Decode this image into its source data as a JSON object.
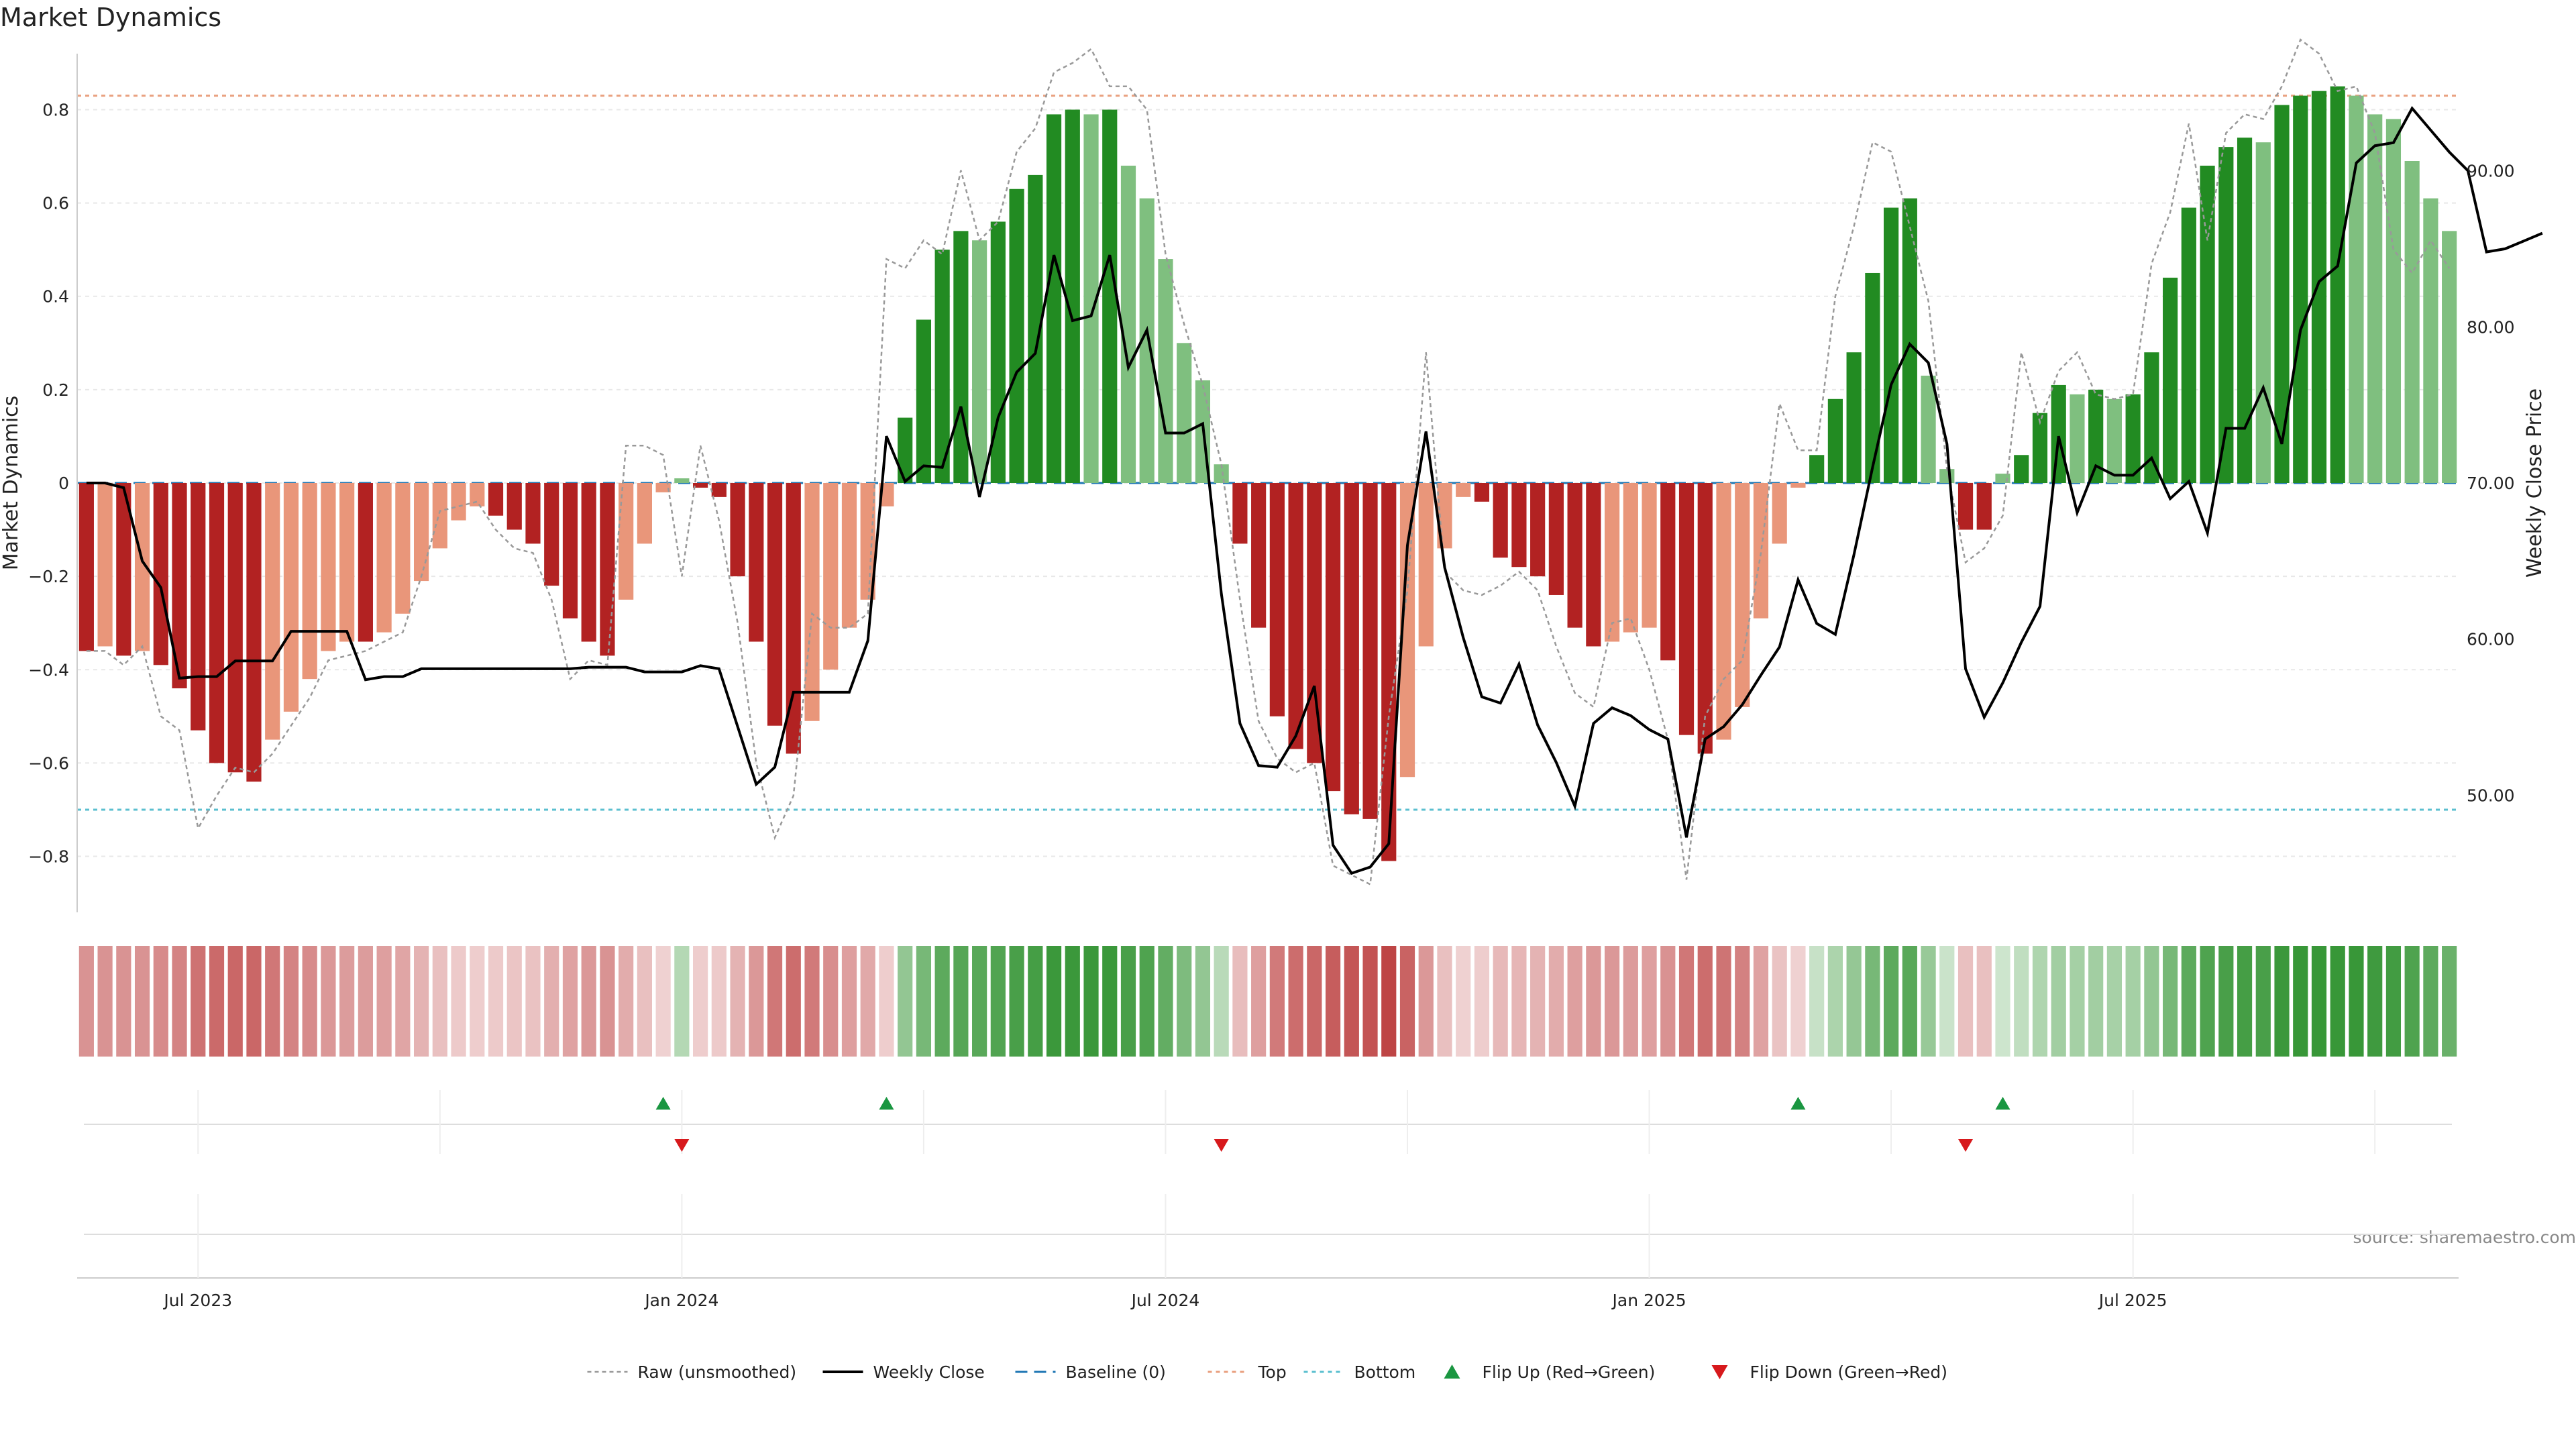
{
  "chart_data": {
    "type": "bar",
    "title": "Market Dynamics",
    "ylabel": "Market Dynamics",
    "y2label": "Weekly Close Price",
    "source": "source: sharemaestro.com",
    "ylim": [
      -0.92,
      0.92
    ],
    "y2lim": [
      42.5,
      97.5
    ],
    "yticks": [
      -0.8,
      -0.6,
      -0.4,
      -0.2,
      0,
      0.2,
      0.4,
      0.6,
      0.8
    ],
    "ytick_labels": [
      "−0.8",
      "−0.6",
      "−0.4",
      "−0.2",
      "0",
      "0.2",
      "0.4",
      "0.6",
      "0.8"
    ],
    "y2ticks": [
      50,
      60,
      70,
      80,
      90
    ],
    "y2tick_labels": [
      "50.00",
      "60.00",
      "70.00",
      "80.00",
      "90.00"
    ],
    "x_tick_labels": [
      {
        "label": "Jul 2023",
        "index": 6
      },
      {
        "label": "Jan 2024",
        "index": 32
      },
      {
        "label": "Jul 2024",
        "index": 58
      },
      {
        "label": "Jan 2025",
        "index": 84
      },
      {
        "label": "Jul 2025",
        "index": 110
      }
    ],
    "top_line": 0.83,
    "bottom_line": -0.7,
    "baseline": 0,
    "values": [
      -0.36,
      -0.35,
      -0.37,
      -0.36,
      -0.39,
      -0.44,
      -0.53,
      -0.6,
      -0.62,
      -0.64,
      -0.55,
      -0.49,
      -0.42,
      -0.36,
      -0.34,
      -0.34,
      -0.32,
      -0.28,
      -0.21,
      -0.14,
      -0.08,
      -0.05,
      -0.07,
      -0.1,
      -0.13,
      -0.22,
      -0.29,
      -0.34,
      -0.37,
      -0.25,
      -0.13,
      -0.02,
      0.01,
      -0.01,
      -0.03,
      -0.2,
      -0.34,
      -0.52,
      -0.58,
      -0.51,
      -0.4,
      -0.31,
      -0.25,
      -0.05,
      0.14,
      0.35,
      0.5,
      0.54,
      0.52,
      0.56,
      0.63,
      0.66,
      0.79,
      0.8,
      0.79,
      0.8,
      0.68,
      0.61,
      0.48,
      0.3,
      0.22,
      0.04,
      -0.13,
      -0.31,
      -0.5,
      -0.57,
      -0.6,
      -0.66,
      -0.71,
      -0.72,
      -0.81,
      -0.63,
      -0.35,
      -0.14,
      -0.03,
      -0.04,
      -0.16,
      -0.18,
      -0.2,
      -0.24,
      -0.31,
      -0.35,
      -0.34,
      -0.32,
      -0.31,
      -0.38,
      -0.54,
      -0.58,
      -0.55,
      -0.48,
      -0.29,
      -0.13,
      -0.01,
      0.06,
      0.18,
      0.28,
      0.45,
      0.59,
      0.61,
      0.23,
      0.03,
      -0.1,
      -0.1,
      0.02,
      0.06,
      0.15,
      0.21,
      0.19,
      0.2,
      0.18,
      0.19,
      0.28,
      0.44,
      0.59,
      0.68,
      0.72,
      0.74,
      0.73,
      0.81,
      0.83,
      0.84,
      0.85,
      0.83,
      0.79,
      0.78,
      0.69,
      0.61,
      0.54
    ],
    "raw": [
      -0.36,
      -0.36,
      -0.39,
      -0.35,
      -0.5,
      -0.53,
      -0.74,
      -0.67,
      -0.61,
      -0.62,
      -0.58,
      -0.52,
      -0.46,
      -0.38,
      -0.37,
      -0.36,
      -0.34,
      -0.32,
      -0.2,
      -0.06,
      -0.05,
      -0.04,
      -0.1,
      -0.14,
      -0.15,
      -0.25,
      -0.42,
      -0.38,
      -0.39,
      0.08,
      0.08,
      0.06,
      -0.2,
      0.08,
      -0.08,
      -0.3,
      -0.6,
      -0.76,
      -0.67,
      -0.28,
      -0.31,
      -0.31,
      -0.28,
      0.48,
      0.46,
      0.52,
      0.49,
      0.67,
      0.52,
      0.56,
      0.71,
      0.76,
      0.88,
      0.9,
      0.93,
      0.85,
      0.85,
      0.8,
      0.49,
      0.34,
      0.21,
      0.04,
      -0.25,
      -0.51,
      -0.59,
      -0.62,
      -0.6,
      -0.82,
      -0.84,
      -0.86,
      -0.5,
      -0.23,
      0.28,
      -0.19,
      -0.23,
      -0.24,
      -0.22,
      -0.19,
      -0.23,
      -0.35,
      -0.45,
      -0.48,
      -0.3,
      -0.29,
      -0.4,
      -0.55,
      -0.85,
      -0.5,
      -0.42,
      -0.38,
      -0.15,
      0.17,
      0.07,
      0.07,
      0.4,
      0.55,
      0.73,
      0.71,
      0.55,
      0.39,
      0.03,
      -0.17,
      -0.14,
      -0.07,
      0.28,
      0.13,
      0.24,
      0.28,
      0.19,
      0.18,
      0.19,
      0.47,
      0.58,
      0.77,
      0.52,
      0.75,
      0.79,
      0.78,
      0.85,
      0.95,
      0.92,
      0.84,
      0.85,
      0.75,
      0.5,
      0.45,
      0.52,
      0.46
    ],
    "weekly_close": [
      70.0,
      70.0,
      69.7,
      65.0,
      63.3,
      57.5,
      57.6,
      57.6,
      58.6,
      58.6,
      58.6,
      60.5,
      60.5,
      60.5,
      60.5,
      57.4,
      57.6,
      57.6,
      58.1,
      58.1,
      58.1,
      58.1,
      58.1,
      58.1,
      58.1,
      58.1,
      58.1,
      58.2,
      58.2,
      58.2,
      57.9,
      57.9,
      57.9,
      58.3,
      58.1,
      54.4,
      50.7,
      51.8,
      56.6,
      56.6,
      56.6,
      56.6,
      59.9,
      73.0,
      70.1,
      71.1,
      71.0,
      74.9,
      69.1,
      74.2,
      77.1,
      78.3,
      84.6,
      80.4,
      80.7,
      84.6,
      77.4,
      79.8,
      73.2,
      73.2,
      73.8,
      62.9,
      54.6,
      51.9,
      51.8,
      53.8,
      57.0,
      46.8,
      45.0,
      45.4,
      46.9,
      66.0,
      73.3,
      64.6,
      60.1,
      56.3,
      55.9,
      58.4,
      54.5,
      52.1,
      49.3,
      54.6,
      55.6,
      55.1,
      54.2,
      53.6,
      47.3,
      53.6,
      54.4,
      55.8,
      57.7,
      59.5,
      63.8,
      61.0,
      60.3,
      65.4,
      71.0,
      76.3,
      78.9,
      77.7,
      72.5,
      58.1,
      55.0,
      57.2,
      59.8,
      62.1,
      73.0,
      68.1,
      71.1,
      70.5,
      70.5,
      71.6,
      69.0,
      70.1,
      66.8,
      73.5,
      73.5,
      76.1,
      72.5,
      79.8,
      82.9,
      83.9,
      90.5,
      91.6,
      91.8,
      94.0,
      92.6,
      91.2,
      90.0,
      84.8,
      85.0,
      85.5,
      86.0
    ],
    "heat_intensity": [
      0.45,
      0.45,
      0.45,
      0.45,
      0.5,
      0.55,
      0.65,
      0.7,
      0.72,
      0.72,
      0.62,
      0.55,
      0.5,
      0.42,
      0.4,
      0.4,
      0.38,
      0.34,
      0.26,
      0.18,
      0.12,
      0.1,
      0.12,
      0.15,
      0.17,
      0.28,
      0.36,
      0.42,
      0.45,
      0.3,
      0.18,
      0.08,
      0.25,
      0.1,
      0.12,
      0.26,
      0.42,
      0.62,
      0.68,
      0.6,
      0.48,
      0.38,
      0.32,
      0.1,
      0.45,
      0.62,
      0.78,
      0.82,
      0.8,
      0.85,
      0.9,
      0.92,
      0.98,
      0.98,
      0.98,
      0.98,
      0.9,
      0.86,
      0.74,
      0.58,
      0.45,
      0.22,
      0.2,
      0.38,
      0.6,
      0.68,
      0.72,
      0.78,
      0.82,
      0.84,
      0.92,
      0.74,
      0.42,
      0.18,
      0.08,
      0.1,
      0.22,
      0.24,
      0.26,
      0.3,
      0.38,
      0.42,
      0.42,
      0.4,
      0.38,
      0.46,
      0.62,
      0.68,
      0.64,
      0.56,
      0.36,
      0.16,
      0.08,
      0.14,
      0.3,
      0.44,
      0.62,
      0.78,
      0.8,
      0.42,
      0.12,
      0.18,
      0.18,
      0.1,
      0.18,
      0.28,
      0.36,
      0.34,
      0.36,
      0.33,
      0.34,
      0.45,
      0.62,
      0.78,
      0.86,
      0.9,
      0.92,
      0.9,
      0.98,
      1.0,
      1.0,
      1.0,
      1.0,
      0.96,
      0.94,
      0.86,
      0.78,
      0.7
    ],
    "flip_up_indices": [
      31,
      43,
      92,
      103
    ],
    "flip_down_indices": [
      32,
      61,
      101
    ],
    "legend": [
      "Raw (unsmoothed)",
      "Weekly Close",
      "Baseline (0)",
      "Top",
      "Bottom",
      "Flip Up (Red→Green)",
      "Flip Down (Green→Red)"
    ],
    "legend_placement": "bottom-center",
    "grid": true
  },
  "colors": {
    "red_strong": "#b22222",
    "red_light": "#e9967a",
    "green_strong": "#228b22",
    "green_light": "#7fbf7f",
    "raw_line": "#999999",
    "close_line": "#000000",
    "baseline": "#1f77b4",
    "top_line": "#e9a07f",
    "bottom_line": "#5bbfcf",
    "flip_up": "#1a9641",
    "flip_down": "#d7191c"
  }
}
